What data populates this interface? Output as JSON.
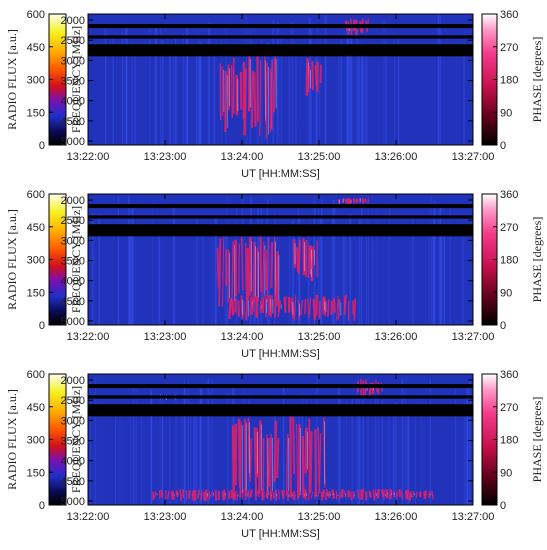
{
  "figure": {
    "background": "#ffffff",
    "colors": {
      "spectrum_bg": "#2233bb",
      "band_gap": "#000000",
      "burst_phase": "#e0206a",
      "burst_core": "#ffffff"
    }
  },
  "chart_data": [
    {
      "type": "heatmap",
      "title": "",
      "xlabel": "UT [HH:MM:SS]",
      "ylabel": "FREQUENCY [MHz]",
      "x_ticks": [
        "13:22:00",
        "13:23:00",
        "13:24:00",
        "13:25:00",
        "13:26:00",
        "13:27:00"
      ],
      "y_ticks": [
        2000,
        2500,
        3000,
        3500,
        4000,
        4500,
        5000
      ],
      "xlim": [
        "13:22:00",
        "13:27:00"
      ],
      "ylim_mhz": [
        1850,
        5100
      ],
      "y_inverted": true,
      "left_colorbar": {
        "label": "RADIO FLUX [a.u.]",
        "ticks": [
          0,
          150,
          300,
          450,
          600
        ],
        "range": [
          0,
          600
        ]
      },
      "right_colorbar": {
        "label": "PHASE [degrees]",
        "ticks": [
          0,
          90,
          180,
          270,
          360
        ],
        "range": [
          0,
          360
        ]
      },
      "dark_bands_mhz": [
        [
          2100,
          2200
        ],
        [
          2380,
          2460
        ],
        [
          2600,
          2900
        ]
      ],
      "bursts": [
        {
          "start": "13:23:42",
          "end": "13:24:28",
          "fmin_mhz": 2850,
          "fmax_mhz": 4950
        },
        {
          "start": "13:24:50",
          "end": "13:25:03",
          "fmin_mhz": 2900,
          "fmax_mhz": 3900
        },
        {
          "start": "13:25:20",
          "end": "13:25:40",
          "fmin_mhz": 1950,
          "fmax_mhz": 2420
        }
      ]
    },
    {
      "type": "heatmap",
      "title": "",
      "xlabel": "UT [HH:MM:SS]",
      "ylabel": "FREQUENCY [MHz]",
      "x_ticks": [
        "13:22:00",
        "13:23:00",
        "13:24:00",
        "13:25:00",
        "13:26:00",
        "13:27:00"
      ],
      "y_ticks": [
        2000,
        2500,
        3000,
        3500,
        4000,
        4500,
        5000
      ],
      "xlim": [
        "13:22:00",
        "13:27:00"
      ],
      "ylim_mhz": [
        1850,
        5100
      ],
      "y_inverted": true,
      "left_colorbar": {
        "label": "RADIO FLUX [a.u.]",
        "ticks": [
          0,
          150,
          300,
          450,
          600
        ],
        "range": [
          0,
          600
        ]
      },
      "right_colorbar": {
        "label": "PHASE [degrees]",
        "ticks": [
          0,
          90,
          180,
          270,
          360
        ],
        "range": [
          0,
          360
        ]
      },
      "dark_bands_mhz": [
        [
          2100,
          2200
        ],
        [
          2380,
          2460
        ],
        [
          2600,
          2900
        ]
      ],
      "bursts": [
        {
          "start": "13:23:40",
          "end": "13:24:30",
          "fmin_mhz": 2900,
          "fmax_mhz": 4650
        },
        {
          "start": "13:24:40",
          "end": "13:25:00",
          "fmin_mhz": 2900,
          "fmax_mhz": 4100
        },
        {
          "start": "13:25:15",
          "end": "13:25:40",
          "fmin_mhz": 1950,
          "fmax_mhz": 2100
        },
        {
          "start": "13:23:50",
          "end": "13:25:30",
          "fmin_mhz": 4350,
          "fmax_mhz": 5000
        }
      ]
    },
    {
      "type": "heatmap",
      "title": "",
      "xlabel": "UT [HH:MM:SS]",
      "ylabel": "FREQUENCY [MHz]",
      "x_ticks": [
        "13:22:00",
        "13:23:00",
        "13:24:00",
        "13:25:00",
        "13:26:00",
        "13:27:00"
      ],
      "y_ticks": [
        2000,
        2500,
        3000,
        3500,
        4000,
        4500,
        5000
      ],
      "xlim": [
        "13:22:00",
        "13:27:00"
      ],
      "ylim_mhz": [
        1850,
        5100
      ],
      "y_inverted": true,
      "left_colorbar": {
        "label": "RADIO FLUX [a.u.]",
        "ticks": [
          0,
          150,
          300,
          450,
          600
        ],
        "range": [
          0,
          600
        ]
      },
      "right_colorbar": {
        "label": "PHASE [degrees]",
        "ticks": [
          0,
          90,
          180,
          270,
          360
        ],
        "range": [
          0,
          360
        ]
      },
      "dark_bands_mhz": [
        [
          2100,
          2200
        ],
        [
          2380,
          2460
        ],
        [
          2600,
          2900
        ]
      ],
      "bursts": [
        {
          "start": "13:23:52",
          "end": "13:24:30",
          "fmin_mhz": 2950,
          "fmax_mhz": 5000
        },
        {
          "start": "13:24:35",
          "end": "13:25:05",
          "fmin_mhz": 2900,
          "fmax_mhz": 5000
        },
        {
          "start": "13:22:55",
          "end": "13:23:10",
          "fmin_mhz": 2380,
          "fmax_mhz": 2480
        },
        {
          "start": "13:25:30",
          "end": "13:25:50",
          "fmin_mhz": 1950,
          "fmax_mhz": 2450
        },
        {
          "start": "13:22:50",
          "end": "13:26:30",
          "fmin_mhz": 4700,
          "fmax_mhz": 5000
        }
      ]
    }
  ]
}
